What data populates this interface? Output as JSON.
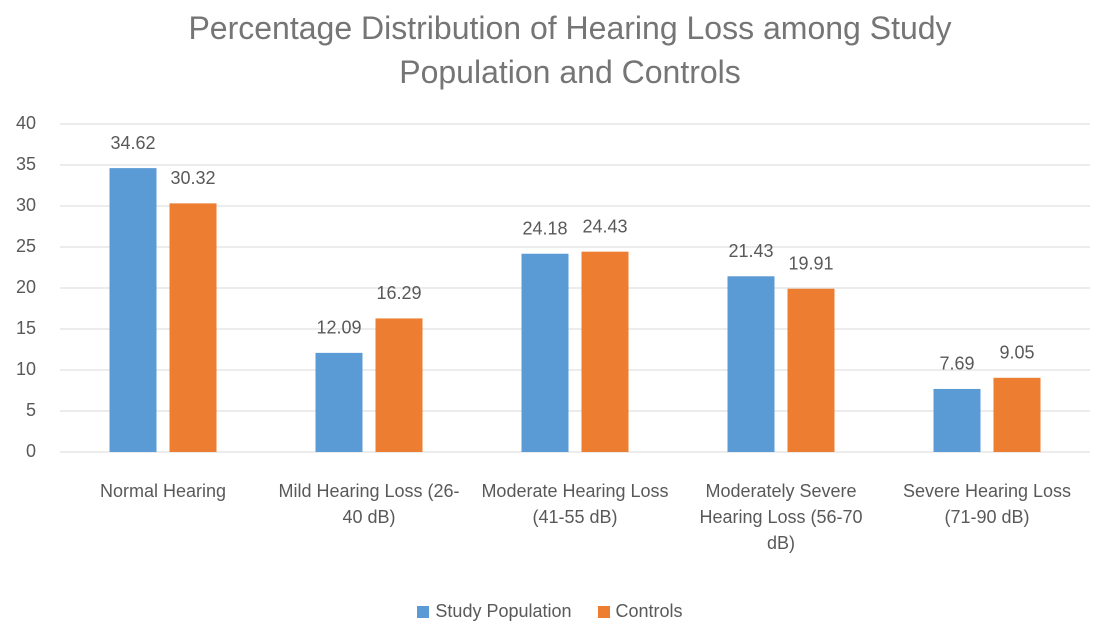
{
  "chart_data": {
    "type": "bar",
    "title": "Percentage Distribution of Hearing Loss among Study Population and Controls",
    "categories": [
      "Normal Hearing",
      "Mild Hearing Loss (26-40 dB)",
      "Moderate Hearing Loss (41-55 dB)",
      "Moderately Severe Hearing Loss (56-70 dB)",
      "Severe Hearing Loss (71-90 dB)"
    ],
    "series": [
      {
        "name": "Study Population",
        "color": "#5b9bd5",
        "values": [
          34.62,
          12.09,
          24.18,
          21.43,
          7.69
        ]
      },
      {
        "name": "Controls",
        "color": "#ed7d31",
        "values": [
          30.32,
          16.29,
          24.43,
          19.91,
          9.05
        ]
      }
    ],
    "ylim": [
      0,
      40
    ],
    "yticks": [
      0,
      5,
      10,
      15,
      20,
      25,
      30,
      35,
      40
    ],
    "grid": true,
    "legend": "bottom"
  }
}
